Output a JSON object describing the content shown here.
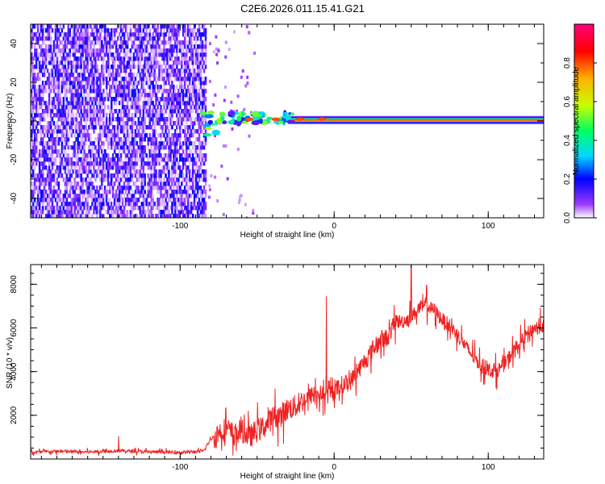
{
  "title": "C2E6.2026.011.15.41.G21",
  "chart_data": [
    {
      "type": "heatmap",
      "title": "C2E6.2026.011.15.41.G21",
      "xlabel": "Height of straight line (km)",
      "ylabel": "Frequency (Hz)",
      "xlim": [
        -197,
        136
      ],
      "ylim": [
        -50,
        50
      ],
      "x_ticks": [
        -100,
        0,
        100
      ],
      "y_ticks": [
        -40,
        -20,
        0,
        20,
        40
      ],
      "x_tick_labels": [
        "-100",
        "0",
        "100"
      ],
      "y_tick_labels": [
        "-40",
        "-20",
        "0",
        "20",
        "40"
      ],
      "noise_region_x": [
        -197,
        -83
      ],
      "signal_line_frequency": 0.5,
      "colorbar": {
        "label": "Normalized spectral amplitude",
        "range": [
          0,
          1
        ],
        "ticks": [
          0.0,
          0.2,
          0.4,
          0.6,
          0.8
        ],
        "tick_labels": [
          "0.0",
          "0.2",
          "0.4",
          "0.6",
          "0.8"
        ],
        "colors": [
          "#ffffff",
          "#9a3bff",
          "#0000ff",
          "#00d8ff",
          "#00ff60",
          "#c8ff00",
          "#ffb000",
          "#ff0000",
          "#ff007a"
        ]
      }
    },
    {
      "type": "line",
      "xlabel": "Height of straight line (km)",
      "ylabel": "SNR (10 * v/v)",
      "xlim": [
        -197,
        136
      ],
      "ylim": [
        0,
        8900
      ],
      "x_ticks": [
        -100,
        0,
        100
      ],
      "y_ticks": [
        2000,
        4000,
        6000,
        8000
      ],
      "x_tick_labels": [
        "-100",
        "0",
        "100"
      ],
      "y_tick_labels": [
        "2000",
        "4000",
        "6000",
        "8000"
      ],
      "series": [
        {
          "name": "SNR",
          "color": "#ee2222",
          "x": [
            -197,
            -180,
            -160,
            -140,
            -120,
            -100,
            -85,
            -80,
            -75,
            -70,
            -65,
            -60,
            -55,
            -50,
            -45,
            -40,
            -35,
            -30,
            -25,
            -20,
            -15,
            -10,
            -5,
            0,
            5,
            10,
            15,
            20,
            25,
            30,
            35,
            40,
            45,
            50,
            55,
            60,
            65,
            70,
            75,
            80,
            85,
            90,
            95,
            100,
            105,
            110,
            115,
            120,
            125,
            130,
            136
          ],
          "values": [
            300,
            350,
            320,
            380,
            330,
            300,
            350,
            900,
            1200,
            1400,
            1100,
            1300,
            1000,
            1300,
            1500,
            1900,
            2000,
            2300,
            2400,
            2700,
            2900,
            3000,
            2900,
            3100,
            3400,
            3500,
            4000,
            4500,
            5000,
            5400,
            5600,
            6300,
            6300,
            6500,
            6900,
            7000,
            6800,
            6400,
            6100,
            5700,
            5200,
            4700,
            4300,
            4100,
            4000,
            4300,
            4800,
            5200,
            5700,
            6000,
            6100
          ]
        }
      ],
      "spikes": [
        {
          "x": -140,
          "value": 1050
        },
        {
          "x": -5,
          "value": 7450
        },
        {
          "x": 50,
          "value": 8850
        },
        {
          "x": 60,
          "value": 7950
        }
      ]
    }
  ]
}
